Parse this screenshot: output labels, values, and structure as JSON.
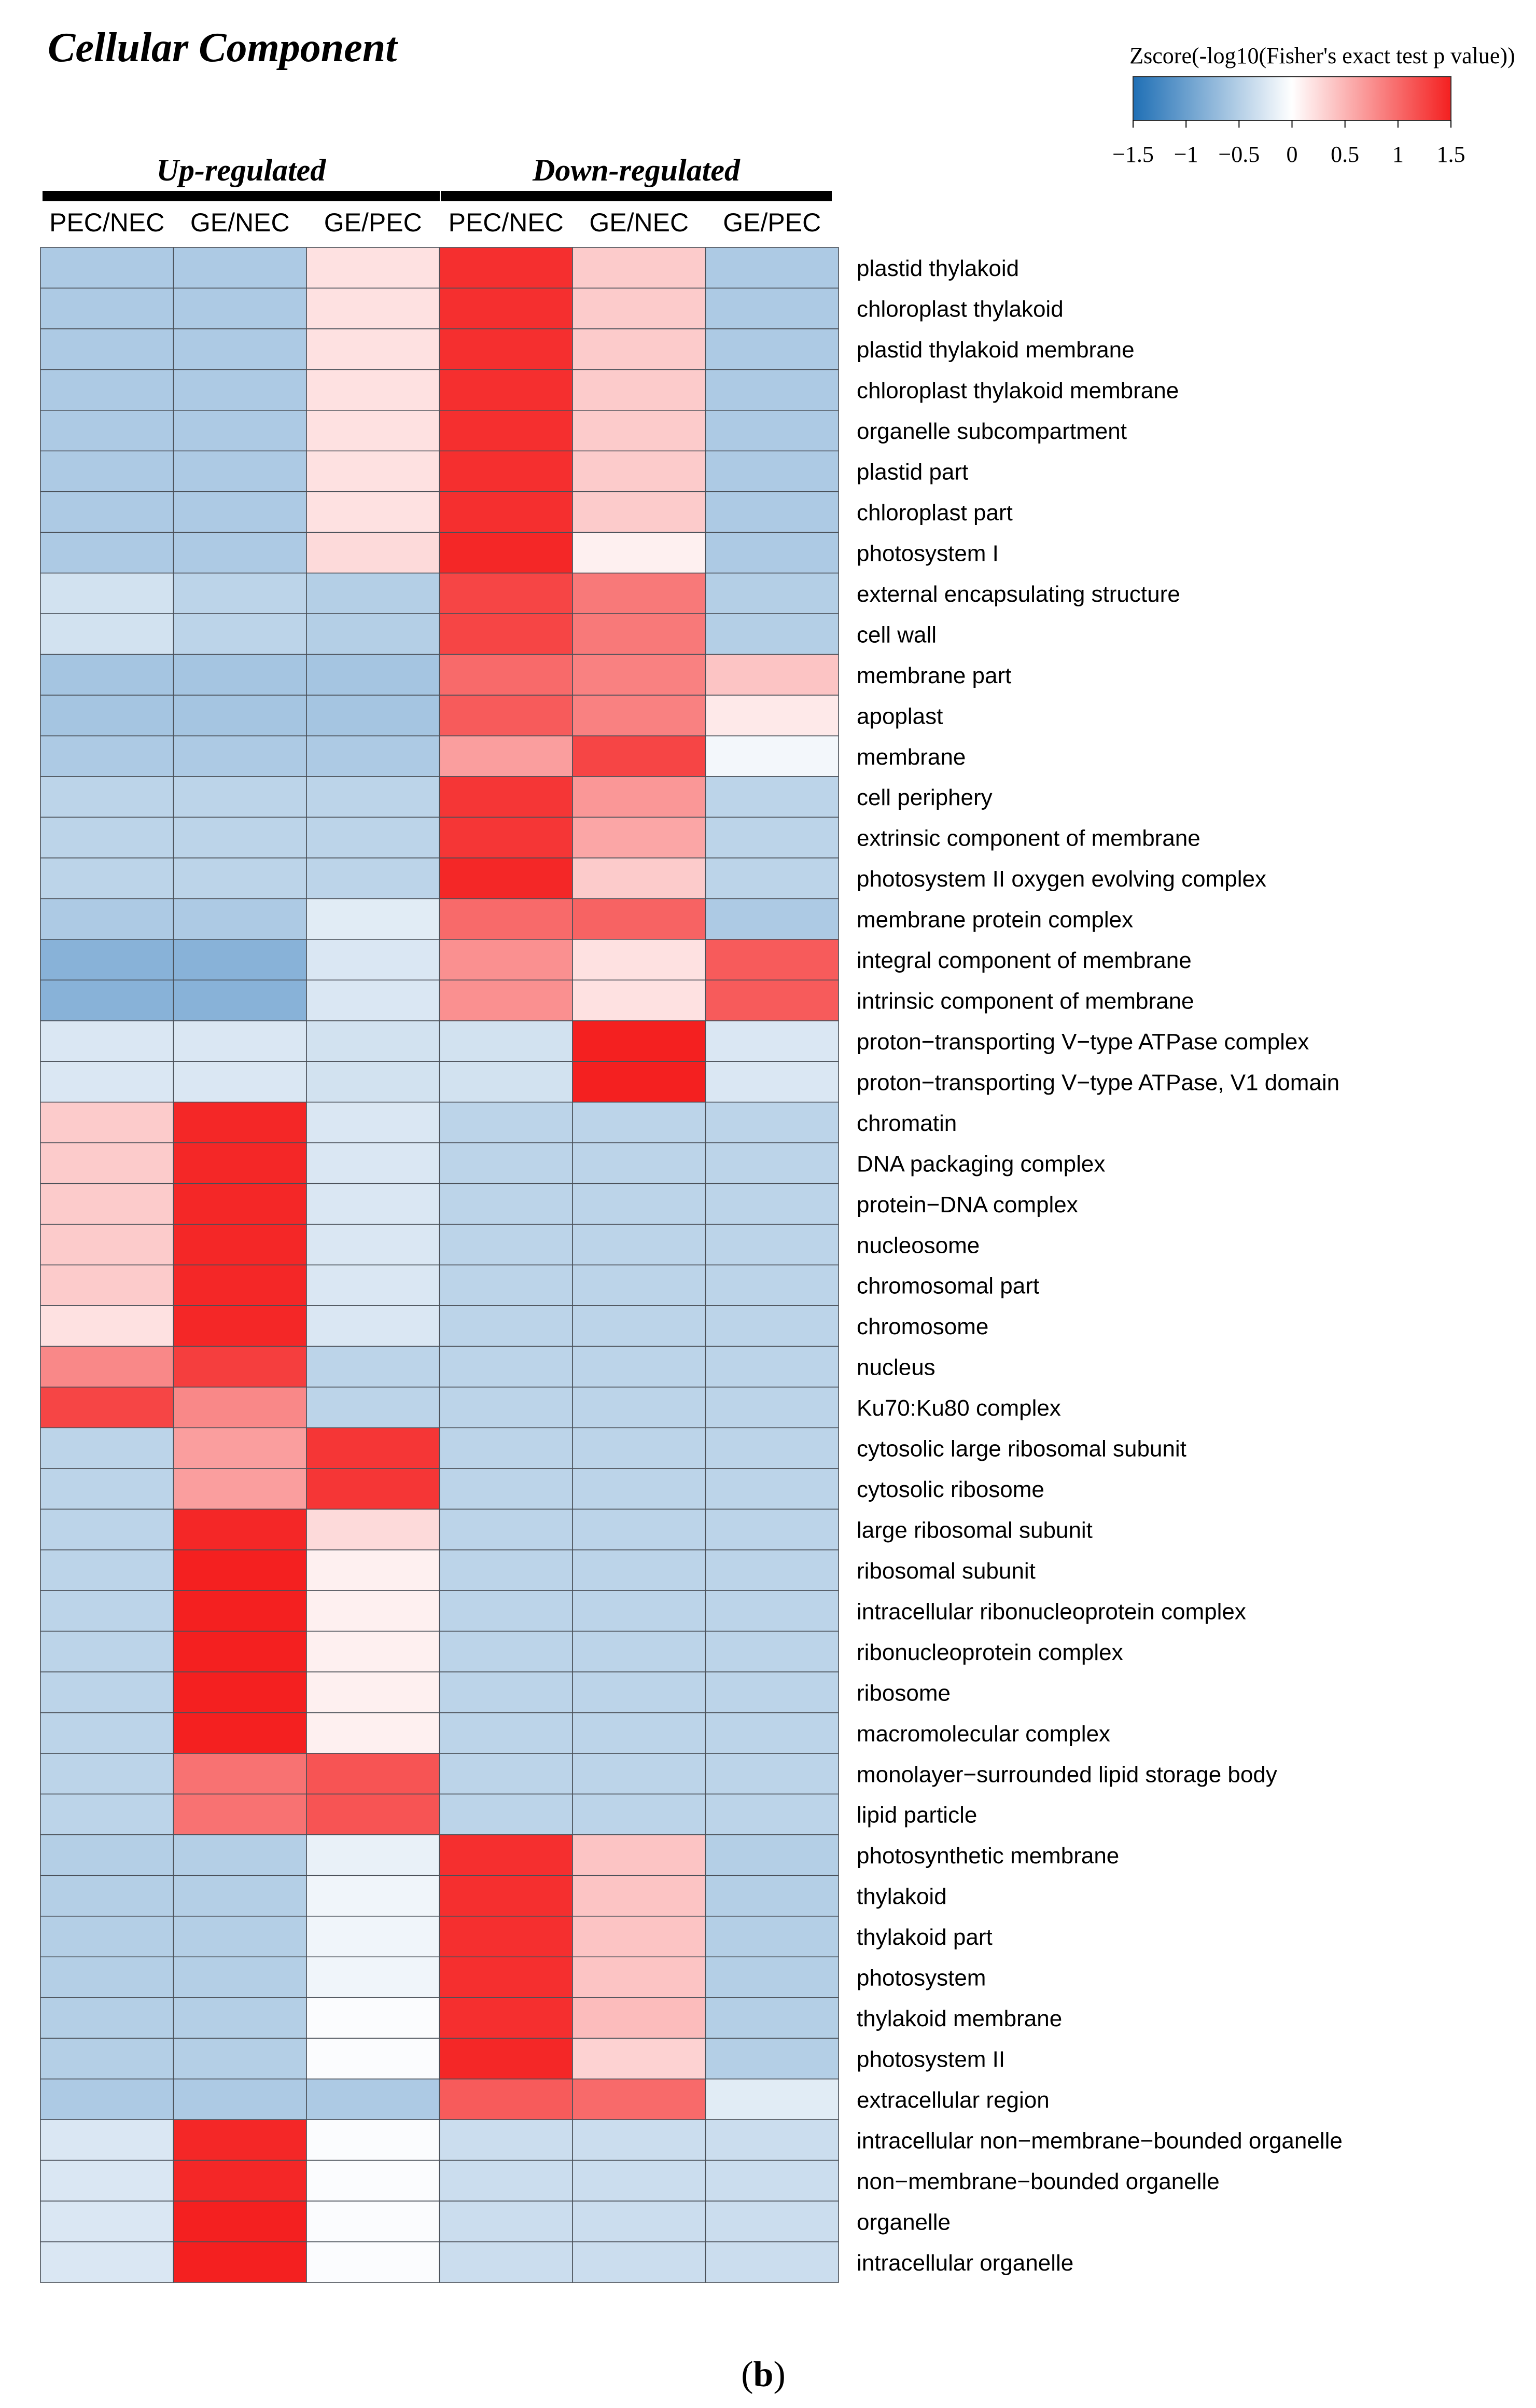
{
  "panel_label": "(b)",
  "chart_data": {
    "type": "heatmap",
    "title": "Cellular Component",
    "colorbar": {
      "title": "Zscore(-log10(Fisher's exact test p value))",
      "range": [
        -1.5,
        1.5
      ],
      "tick_labels": [
        "-1.5",
        "-1",
        "-0.5",
        "0",
        "0.5",
        "1",
        "1.5"
      ],
      "colors": {
        "low": "#1f6fb5",
        "mid": "#ffffff",
        "high": "#f42020"
      }
    },
    "groups": [
      {
        "label": "Up-regulated",
        "columns": [
          "PEC/NEC",
          "GE/NEC",
          "GE/PEC"
        ]
      },
      {
        "label": "Down-regulated",
        "columns": [
          "PEC/NEC",
          "GE/NEC",
          "GE/PEC"
        ]
      }
    ],
    "columns": [
      "PEC/NEC",
      "GE/NEC",
      "GE/PEC",
      "PEC/NEC",
      "GE/NEC",
      "GE/PEC"
    ],
    "rows": [
      "plastid thylakoid",
      "chloroplast thylakoid",
      "plastid thylakoid membrane",
      "chloroplast thylakoid membrane",
      "organelle subcompartment",
      "plastid part",
      "chloroplast part",
      "photosystem I",
      "external encapsulating structure",
      "cell wall",
      "membrane part",
      "apoplast",
      "membrane",
      "cell periphery",
      "extrinsic component of membrane",
      "photosystem II oxygen evolving complex",
      "membrane protein complex",
      "integral component of membrane",
      "intrinsic component of membrane",
      "proton−transporting V−type ATPase complex",
      "proton−transporting V−type ATPase, V1 domain",
      "chromatin",
      "DNA packaging complex",
      "protein−DNA complex",
      "nucleosome",
      "chromosomal part",
      "chromosome",
      "nucleus",
      "Ku70:Ku80 complex",
      "cytosolic large ribosomal subunit",
      "cytosolic ribosome",
      "large ribosomal subunit",
      "ribosomal subunit",
      "intracellular ribonucleoprotein complex",
      "ribonucleoprotein complex",
      "ribosome",
      "macromolecular complex",
      "monolayer−surrounded lipid storage body",
      "lipid particle",
      "photosynthetic membrane",
      "thylakoid",
      "thylakoid part",
      "photosystem",
      "thylakoid membrane",
      "photosystem II",
      "extracellular region",
      "intracellular non−membrane−bounded organelle",
      "non−membrane−bounded organelle",
      "organelle",
      "intracellular organelle"
    ],
    "values": [
      [
        -0.55,
        -0.55,
        0.2,
        1.4,
        0.35,
        -0.55
      ],
      [
        -0.55,
        -0.55,
        0.2,
        1.4,
        0.35,
        -0.55
      ],
      [
        -0.55,
        -0.55,
        0.2,
        1.4,
        0.35,
        -0.55
      ],
      [
        -0.55,
        -0.55,
        0.2,
        1.4,
        0.35,
        -0.55
      ],
      [
        -0.55,
        -0.55,
        0.2,
        1.4,
        0.35,
        -0.55
      ],
      [
        -0.55,
        -0.55,
        0.2,
        1.4,
        0.35,
        -0.55
      ],
      [
        -0.55,
        -0.55,
        0.2,
        1.4,
        0.35,
        -0.55
      ],
      [
        -0.55,
        -0.55,
        0.25,
        1.45,
        0.1,
        -0.55
      ],
      [
        -0.3,
        -0.45,
        -0.5,
        1.25,
        0.9,
        -0.5
      ],
      [
        -0.3,
        -0.45,
        -0.5,
        1.25,
        0.9,
        -0.5
      ],
      [
        -0.6,
        -0.6,
        -0.6,
        1.0,
        0.85,
        0.4
      ],
      [
        -0.6,
        -0.6,
        -0.6,
        1.1,
        0.85,
        0.15
      ],
      [
        -0.55,
        -0.55,
        -0.55,
        0.65,
        1.25,
        -0.08
      ],
      [
        -0.45,
        -0.45,
        -0.45,
        1.35,
        0.7,
        -0.45
      ],
      [
        -0.45,
        -0.45,
        -0.45,
        1.35,
        0.6,
        -0.45
      ],
      [
        -0.45,
        -0.45,
        -0.45,
        1.45,
        0.35,
        -0.45
      ],
      [
        -0.55,
        -0.55,
        -0.2,
        1.0,
        1.05,
        -0.55
      ],
      [
        -0.8,
        -0.8,
        -0.25,
        0.75,
        0.2,
        1.1
      ],
      [
        -0.8,
        -0.8,
        -0.25,
        0.75,
        0.2,
        1.1
      ],
      [
        -0.25,
        -0.25,
        -0.3,
        -0.3,
        1.5,
        -0.25
      ],
      [
        -0.25,
        -0.25,
        -0.3,
        -0.3,
        1.5,
        -0.25
      ],
      [
        0.35,
        1.45,
        -0.25,
        -0.45,
        -0.45,
        -0.45
      ],
      [
        0.35,
        1.45,
        -0.25,
        -0.45,
        -0.45,
        -0.45
      ],
      [
        0.35,
        1.45,
        -0.25,
        -0.45,
        -0.45,
        -0.45
      ],
      [
        0.35,
        1.45,
        -0.25,
        -0.45,
        -0.45,
        -0.45
      ],
      [
        0.35,
        1.45,
        -0.25,
        -0.45,
        -0.45,
        -0.45
      ],
      [
        0.2,
        1.45,
        -0.25,
        -0.45,
        -0.45,
        -0.45
      ],
      [
        0.8,
        1.3,
        -0.45,
        -0.45,
        -0.45,
        -0.45
      ],
      [
        1.25,
        0.8,
        -0.45,
        -0.45,
        -0.45,
        -0.45
      ],
      [
        -0.45,
        0.65,
        1.35,
        -0.45,
        -0.45,
        -0.45
      ],
      [
        -0.45,
        0.65,
        1.35,
        -0.45,
        -0.45,
        -0.45
      ],
      [
        -0.45,
        1.45,
        0.25,
        -0.45,
        -0.45,
        -0.45
      ],
      [
        -0.45,
        1.5,
        0.1,
        -0.45,
        -0.45,
        -0.45
      ],
      [
        -0.45,
        1.5,
        0.1,
        -0.45,
        -0.45,
        -0.45
      ],
      [
        -0.45,
        1.5,
        0.1,
        -0.45,
        -0.45,
        -0.45
      ],
      [
        -0.45,
        1.5,
        0.1,
        -0.45,
        -0.45,
        -0.45
      ],
      [
        -0.45,
        1.5,
        0.1,
        -0.45,
        -0.45,
        -0.45
      ],
      [
        -0.45,
        0.95,
        1.15,
        -0.45,
        -0.45,
        -0.45
      ],
      [
        -0.45,
        0.95,
        1.15,
        -0.45,
        -0.45,
        -0.45
      ],
      [
        -0.5,
        -0.5,
        -0.15,
        1.4,
        0.4,
        -0.5
      ],
      [
        -0.5,
        -0.5,
        -0.1,
        1.4,
        0.4,
        -0.5
      ],
      [
        -0.5,
        -0.5,
        -0.1,
        1.4,
        0.4,
        -0.5
      ],
      [
        -0.5,
        -0.5,
        -0.1,
        1.4,
        0.4,
        -0.5
      ],
      [
        -0.5,
        -0.5,
        -0.03,
        1.4,
        0.45,
        -0.5
      ],
      [
        -0.5,
        -0.5,
        -0.03,
        1.45,
        0.3,
        -0.5
      ],
      [
        -0.55,
        -0.55,
        -0.55,
        1.1,
        1.0,
        -0.2
      ],
      [
        -0.25,
        1.45,
        -0.03,
        -0.35,
        -0.35,
        -0.35
      ],
      [
        -0.25,
        1.45,
        -0.03,
        -0.35,
        -0.35,
        -0.35
      ],
      [
        -0.25,
        1.5,
        -0.03,
        -0.35,
        -0.35,
        -0.35
      ],
      [
        -0.25,
        1.5,
        -0.03,
        -0.35,
        -0.35,
        -0.35
      ]
    ]
  }
}
